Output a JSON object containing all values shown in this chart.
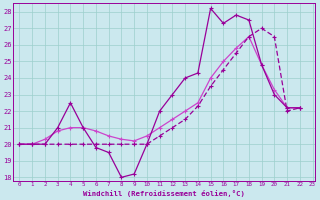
{
  "xlabel": "Windchill (Refroidissement éolien,°C)",
  "bg_color": "#cbe8ee",
  "grid_color": "#9dcfcc",
  "line_color1": "#990099",
  "line_color2": "#cc44cc",
  "xmin": -0.5,
  "xmax": 23.2,
  "ymin": 17.8,
  "ymax": 28.5,
  "yticks": [
    18,
    19,
    20,
    21,
    22,
    23,
    24,
    25,
    26,
    27,
    28
  ],
  "xticks": [
    0,
    1,
    2,
    3,
    4,
    5,
    6,
    7,
    8,
    9,
    10,
    11,
    12,
    13,
    14,
    15,
    16,
    17,
    18,
    19,
    20,
    21,
    22,
    23
  ],
  "series1": [
    20.0,
    20.0,
    20.0,
    21.0,
    22.5,
    21.0,
    19.8,
    19.5,
    18.0,
    18.2,
    20.0,
    22.0,
    23.0,
    24.0,
    24.3,
    28.2,
    27.3,
    27.8,
    27.5,
    24.8,
    23.0,
    22.2,
    22.2
  ],
  "series2": [
    20.0,
    20.0,
    20.3,
    20.8,
    21.0,
    21.0,
    20.8,
    20.5,
    20.3,
    20.2,
    20.5,
    21.0,
    21.5,
    22.0,
    22.5,
    24.0,
    25.0,
    25.8,
    26.5,
    24.8,
    23.3,
    22.2,
    22.2
  ],
  "series3": [
    20.0,
    20.0,
    20.0,
    20.0,
    20.0,
    20.0,
    20.0,
    20.0,
    20.0,
    20.0,
    20.0,
    20.5,
    21.0,
    21.5,
    22.3,
    23.5,
    24.5,
    25.5,
    26.5,
    27.0,
    26.5,
    22.0,
    22.2
  ]
}
